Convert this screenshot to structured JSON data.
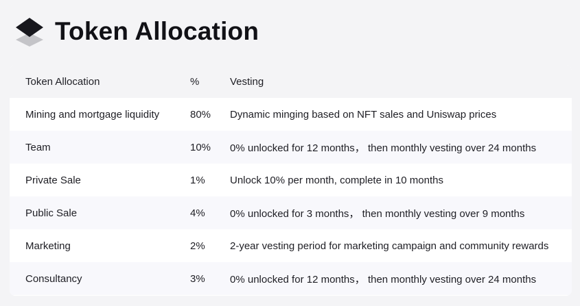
{
  "page": {
    "title": "Token Allocation",
    "logo_icon": "stacked-layers-icon"
  },
  "table": {
    "headers": [
      "Token Allocation",
      "%",
      "Vesting"
    ],
    "rows": [
      [
        "Mining and mortgage liquidity",
        "80%",
        "Dynamic minging based on NFT sales and Uniswap prices"
      ],
      [
        "Team",
        "10%",
        "0% unlocked for 12 months， then monthly vesting over 24 months"
      ],
      [
        "Private Sale",
        "1%",
        "Unlock 10% per month, complete in 10 months"
      ],
      [
        "Public Sale",
        "4%",
        "0% unlocked for 3 months， then monthly vesting over 9 months"
      ],
      [
        "Marketing",
        "2%",
        "2-year vesting period for marketing campaign and community rewards"
      ],
      [
        "Consultancy",
        "3%",
        "0% unlocked for 12 months， then monthly vesting over 24 months"
      ]
    ]
  },
  "colors": {
    "page_background": "#f4f4f6",
    "header_row": "#f4f4f6",
    "alternate_row": "#f8f8fc",
    "logo_top": "#17171d",
    "logo_bottom": "#c4c4c8"
  }
}
